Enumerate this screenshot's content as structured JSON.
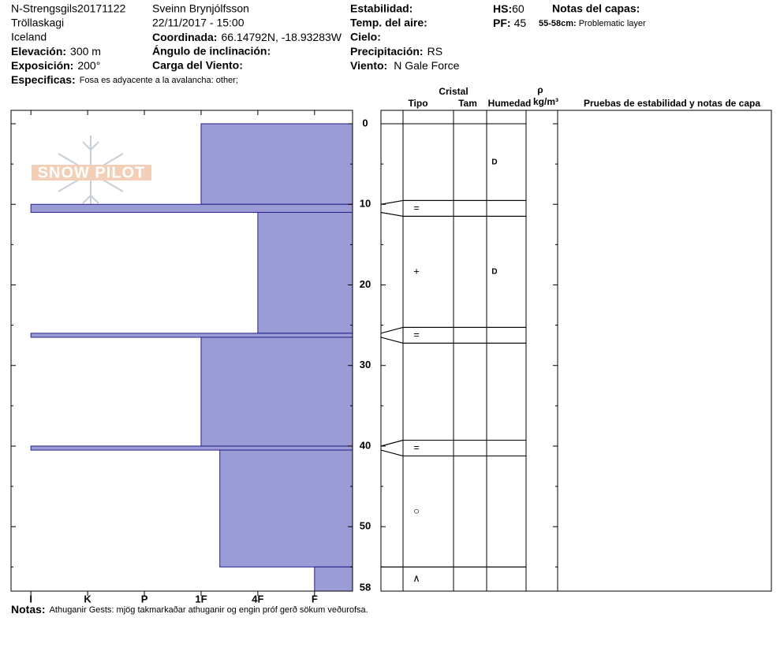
{
  "header": {
    "site": "N-Strengsgils20171122",
    "region": "Tröllaskagi",
    "country": "Iceland",
    "observer": "Sveinn Brynjólfsson",
    "datetime": "22/11/2017 - 15:00",
    "elevation": {
      "label": "Elevación:",
      "value": "300 m"
    },
    "aspect": {
      "label": "Exposición:",
      "value": "200°"
    },
    "specifics": {
      "label": "Especificas:",
      "value": "Fosa es adyacente a la avalancha: other;"
    },
    "coordinates": {
      "label": "Coordinada:",
      "value": "66.14792N, -18.93283W"
    },
    "slope_angle": {
      "label": "Ángulo de inclinación:"
    },
    "wind_loading": {
      "label": "Carga del Viento:"
    },
    "stability": {
      "label": "Estabilidad:"
    },
    "air_temp": {
      "label": "Temp. del aire:"
    },
    "sky": {
      "label": "Cielo:"
    },
    "precipitation": {
      "label": "Precipitación:",
      "value": "RS"
    },
    "wind": {
      "label": "Viento:",
      "value": "N Gale Force"
    },
    "hs": {
      "label": "HS:",
      "value": 60
    },
    "pf": {
      "label": "PF:",
      "value": 45
    },
    "layer_notes": {
      "label": "Notas del capas:",
      "items": [
        {
          "depth": "55-58cm:",
          "note": "Problematic layer"
        }
      ]
    },
    "logo": "SNOW PILOT"
  },
  "table_headers": {
    "crystal": "Cristal",
    "type": "Tipo",
    "size": "Tam",
    "moisture": "Humedad",
    "density": "ρ",
    "density_unit": "kg/m³",
    "tests": "Pruebas de estabilidad y notas de capa"
  },
  "footer": {
    "label": "Notas:",
    "value": "Athuganir Gests: mjög takmarkaðar athuganir og engin próf gerð sökum veðurofsa."
  },
  "chart_data": {
    "type": "snowprofile",
    "layers": {
      "top": [
        0,
        10,
        11,
        26,
        26.5,
        40,
        40.5,
        55
      ],
      "bottom": [
        10,
        11,
        26,
        26.5,
        40,
        40.5,
        55,
        58
      ],
      "hardness": [
        3,
        6,
        2,
        6,
        3,
        6,
        2.67,
        1
      ],
      "crystal": [
        null,
        "=",
        "+",
        "=",
        null,
        "=",
        "○",
        "∧"
      ],
      "moisture": [
        "D",
        null,
        "D",
        null,
        null,
        null,
        null,
        null
      ]
    },
    "color": "#9b9bd6",
    "xlim": [
      6.35,
      0.33
    ],
    "xticks": [
      {
        "value": 6,
        "label": "I"
      },
      {
        "value": 5,
        "label": "K"
      },
      {
        "value": 4,
        "label": "P"
      },
      {
        "value": 3,
        "label": "1F"
      },
      {
        "value": 2,
        "label": "4F"
      },
      {
        "value": 1,
        "label": "F"
      }
    ],
    "ylim": [
      0,
      58
    ],
    "yticks": [
      0,
      10,
      20,
      30,
      40,
      50,
      58
    ],
    "yminor": [
      5,
      15,
      25,
      35,
      45,
      55
    ]
  }
}
